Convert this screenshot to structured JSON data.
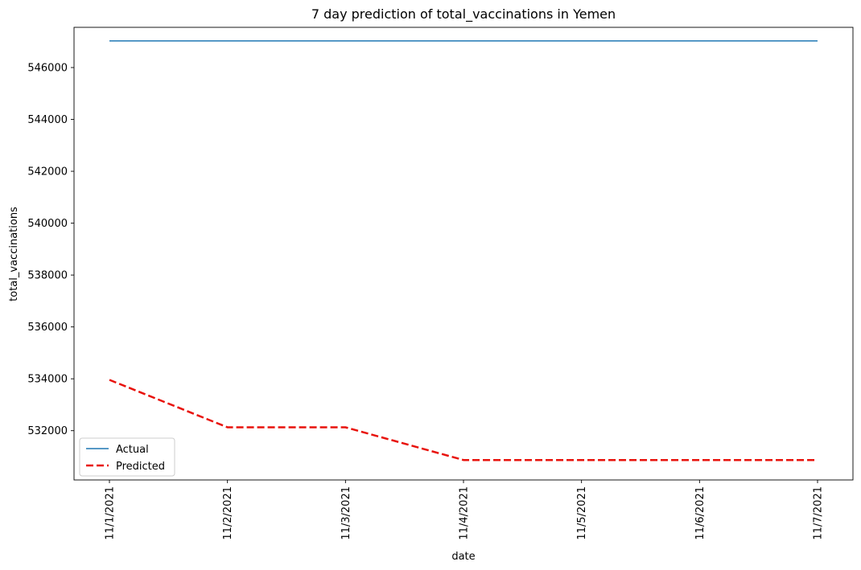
{
  "chart_data": {
    "type": "line",
    "title": "7 day prediction of total_vaccinations in Yemen",
    "xlabel": "date",
    "ylabel": "total_vaccinations",
    "categories": [
      "11/1/2021",
      "11/2/2021",
      "11/3/2021",
      "11/4/2021",
      "11/5/2021",
      "11/6/2021",
      "11/7/2021"
    ],
    "yticks": [
      "532000",
      "534000",
      "536000",
      "538000",
      "540000",
      "542000",
      "544000",
      "546000"
    ],
    "ylim": [
      530100,
      547550
    ],
    "grid": false,
    "legend_position": "lower-left",
    "series": [
      {
        "name": "Actual",
        "values": [
          547027,
          547027,
          547027,
          547027,
          547027,
          547027,
          547027
        ],
        "color": "#1f77b4",
        "style": "solid"
      },
      {
        "name": "Predicted",
        "values": [
          533960,
          532130,
          532130,
          530870,
          530870,
          530870,
          530870
        ],
        "color": "#e8120c",
        "style": "dashed"
      }
    ]
  }
}
